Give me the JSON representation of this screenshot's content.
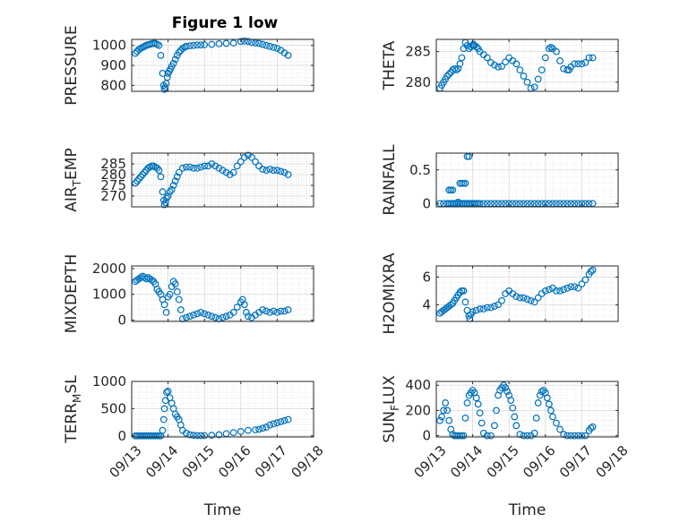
{
  "figure": {
    "title": "Figure 1 low",
    "marker_color": "#0072BD",
    "axis_color": "#262626",
    "grid_color": "#d9d9d9"
  },
  "chart_data": [
    {
      "type": "scatter",
      "ylabel_parts": [
        "PRESSURE"
      ],
      "xlim": [
        0,
        5
      ],
      "ylim": [
        770,
        1030
      ],
      "yticks": [
        800,
        900,
        1000
      ],
      "ytick_labels": [
        "800",
        "900",
        "1000"
      ],
      "xticks": [
        0,
        1,
        2,
        3,
        4,
        5
      ],
      "xtick_labels": [],
      "grid": true,
      "minor_grid": true,
      "x": [
        0.1,
        0.15,
        0.2,
        0.25,
        0.3,
        0.35,
        0.4,
        0.45,
        0.5,
        0.55,
        0.6,
        0.65,
        0.7,
        0.75,
        0.8,
        0.85,
        0.88,
        0.9,
        0.92,
        0.95,
        0.98,
        1.0,
        1.03,
        1.06,
        1.1,
        1.15,
        1.2,
        1.25,
        1.3,
        1.35,
        1.4,
        1.45,
        1.5,
        1.6,
        1.7,
        1.8,
        1.9,
        2.0,
        2.2,
        2.4,
        2.6,
        2.8,
        3.0,
        3.1,
        3.2,
        3.3,
        3.4,
        3.5,
        3.6,
        3.7,
        3.8,
        3.9,
        4.0,
        4.1,
        4.2,
        4.3
      ],
      "y": [
        960,
        970,
        980,
        985,
        990,
        995,
        1000,
        1003,
        1005,
        1008,
        1010,
        1010,
        1005,
        1000,
        950,
        860,
        800,
        780,
        790,
        810,
        840,
        860,
        870,
        880,
        895,
        910,
        930,
        950,
        965,
        975,
        985,
        990,
        995,
        998,
        1000,
        1002,
        1002,
        1003,
        1005,
        1008,
        1010,
        1012,
        1020,
        1022,
        1020,
        1015,
        1012,
        1010,
        1005,
        1000,
        995,
        990,
        985,
        975,
        962,
        950
      ]
    },
    {
      "type": "scatter",
      "ylabel_parts": [
        "THETA"
      ],
      "xlim": [
        0,
        5
      ],
      "ylim": [
        278.5,
        287
      ],
      "yticks": [
        280,
        285
      ],
      "ytick_labels": [
        "280",
        "285"
      ],
      "xticks": [
        0,
        1,
        2,
        3,
        4,
        5
      ],
      "xtick_labels": [],
      "grid": true,
      "minor_grid": true,
      "x": [
        0.1,
        0.15,
        0.2,
        0.25,
        0.3,
        0.35,
        0.4,
        0.45,
        0.5,
        0.55,
        0.6,
        0.65,
        0.7,
        0.75,
        0.8,
        0.85,
        0.9,
        0.95,
        1.0,
        1.02,
        1.05,
        1.1,
        1.15,
        1.2,
        1.3,
        1.4,
        1.5,
        1.6,
        1.7,
        1.8,
        1.9,
        2.0,
        2.1,
        2.2,
        2.3,
        2.4,
        2.5,
        2.6,
        2.7,
        2.8,
        2.9,
        3.0,
        3.1,
        3.15,
        3.2,
        3.3,
        3.4,
        3.5,
        3.6,
        3.65,
        3.7,
        3.8,
        3.9,
        4.0,
        4.1,
        4.2,
        4.3
      ],
      "y": [
        279,
        279.5,
        280,
        280.5,
        281,
        281.3,
        281.6,
        282,
        282.2,
        282,
        282.2,
        283,
        284,
        285.5,
        286.5,
        286,
        285.5,
        285.8,
        286,
        286.2,
        286,
        285.8,
        285.5,
        285,
        284.5,
        284,
        283.2,
        282.8,
        282.5,
        282.6,
        283.3,
        284,
        283.5,
        283,
        282,
        281,
        280,
        279,
        279.2,
        280.5,
        282,
        284,
        285.5,
        285.7,
        285.5,
        285,
        283.5,
        282.2,
        282,
        282,
        282.5,
        283,
        283,
        283,
        283.2,
        284,
        284
      ]
    },
    {
      "type": "scatter",
      "ylabel_parts": [
        "AIR",
        "T",
        "EMP"
      ],
      "xlim": [
        0,
        5
      ],
      "ylim": [
        265,
        290
      ],
      "yticks": [
        270,
        275,
        280,
        285
      ],
      "ytick_labels": [
        "270",
        "275",
        "280",
        "285"
      ],
      "xticks": [
        0,
        1,
        2,
        3,
        4,
        5
      ],
      "xtick_labels": [],
      "grid": true,
      "minor_grid": true,
      "x": [
        0.1,
        0.15,
        0.2,
        0.25,
        0.3,
        0.35,
        0.4,
        0.45,
        0.5,
        0.55,
        0.6,
        0.65,
        0.7,
        0.75,
        0.8,
        0.85,
        0.88,
        0.9,
        0.93,
        0.96,
        1.0,
        1.05,
        1.1,
        1.15,
        1.2,
        1.25,
        1.3,
        1.4,
        1.5,
        1.6,
        1.7,
        1.8,
        1.9,
        2.0,
        2.1,
        2.2,
        2.3,
        2.4,
        2.5,
        2.6,
        2.7,
        2.8,
        2.9,
        3.0,
        3.1,
        3.2,
        3.3,
        3.4,
        3.5,
        3.6,
        3.7,
        3.8,
        3.9,
        4.0,
        4.1,
        4.2,
        4.3
      ],
      "y": [
        276,
        277,
        278,
        279,
        280,
        281,
        282,
        283,
        283.5,
        284,
        284,
        283.5,
        283,
        282,
        279,
        272,
        268,
        266,
        267,
        269,
        270,
        272,
        273,
        275,
        277,
        279,
        281,
        283,
        283.5,
        283.5,
        283,
        283,
        283.5,
        284,
        284,
        285,
        284,
        283,
        282,
        281,
        280,
        281,
        284,
        286,
        288,
        289,
        288,
        286,
        284,
        282.5,
        282,
        282.5,
        282,
        282,
        281.5,
        281,
        280
      ]
    },
    {
      "type": "scatter",
      "ylabel_parts": [
        "RAINFALL"
      ],
      "xlim": [
        0,
        5
      ],
      "ylim": [
        -0.05,
        0.75
      ],
      "yticks": [
        0,
        0.5
      ],
      "ytick_labels": [
        "0",
        "0.5"
      ],
      "xticks": [
        0,
        1,
        2,
        3,
        4,
        5
      ],
      "xtick_labels": [],
      "grid": true,
      "minor_grid": true,
      "x": [
        0.1,
        0.2,
        0.3,
        0.35,
        0.4,
        0.45,
        0.5,
        0.55,
        0.6,
        0.65,
        0.7,
        0.75,
        0.8,
        0.85,
        0.9,
        0.95,
        1.0,
        1.05,
        1.1,
        1.15,
        1.2,
        1.3,
        1.4,
        1.5,
        1.6,
        1.7,
        1.8,
        1.9,
        2.0,
        2.1,
        2.2,
        2.3,
        2.4,
        2.5,
        2.6,
        2.7,
        2.8,
        2.9,
        3.0,
        3.1,
        3.2,
        3.3,
        3.4,
        3.5,
        3.6,
        3.7,
        3.8,
        3.9,
        4.0,
        4.1,
        4.2,
        4.3,
        0.35,
        0.4,
        0.45,
        0.6,
        0.75,
        0.8,
        0.85,
        0.65,
        0.7,
        0.9,
        1.0
      ],
      "y": [
        0,
        0,
        0,
        0,
        0,
        0,
        0,
        0,
        0,
        0,
        0,
        0,
        0,
        0,
        0,
        0,
        0,
        0,
        0,
        0,
        0,
        0,
        0,
        0,
        0,
        0,
        0,
        0,
        0,
        0,
        0,
        0,
        0,
        0,
        0,
        0,
        0,
        0,
        0,
        0,
        0,
        0,
        0,
        0,
        0,
        0,
        0,
        0,
        0,
        0,
        0,
        0,
        0.2,
        0.2,
        0.2,
        0.02,
        0.3,
        0.3,
        0.7,
        0.3,
        0.3,
        0.7,
        0
      ]
    },
    {
      "type": "scatter",
      "ylabel_parts": [
        "MIXDEPTH"
      ],
      "xlim": [
        0,
        5
      ],
      "ylim": [
        -50,
        2100
      ],
      "yticks": [
        0,
        1000,
        2000
      ],
      "ytick_labels": [
        "0",
        "1000",
        "2000"
      ],
      "xticks": [
        0,
        1,
        2,
        3,
        4,
        5
      ],
      "xtick_labels": [],
      "grid": true,
      "minor_grid": true,
      "x": [
        0.1,
        0.15,
        0.2,
        0.25,
        0.3,
        0.35,
        0.4,
        0.45,
        0.5,
        0.55,
        0.6,
        0.65,
        0.7,
        0.75,
        0.8,
        0.85,
        0.9,
        0.95,
        1.0,
        1.05,
        1.1,
        1.15,
        1.2,
        1.25,
        1.3,
        1.35,
        1.4,
        1.5,
        1.6,
        1.7,
        1.8,
        1.9,
        2.0,
        2.1,
        2.2,
        2.3,
        2.4,
        2.5,
        2.6,
        2.7,
        2.8,
        2.9,
        3.0,
        3.05,
        3.1,
        3.15,
        3.2,
        3.3,
        3.4,
        3.5,
        3.6,
        3.7,
        3.8,
        3.9,
        4.0,
        4.1,
        4.2,
        4.3
      ],
      "y": [
        1500,
        1550,
        1600,
        1650,
        1700,
        1650,
        1600,
        1650,
        1600,
        1550,
        1500,
        1400,
        1200,
        1100,
        1000,
        800,
        600,
        300,
        900,
        1000,
        1300,
        1500,
        1400,
        1100,
        800,
        400,
        50,
        100,
        150,
        200,
        250,
        300,
        250,
        200,
        150,
        100,
        50,
        100,
        150,
        200,
        300,
        500,
        700,
        800,
        600,
        300,
        150,
        100,
        200,
        300,
        400,
        350,
        300,
        350,
        300,
        350,
        350,
        400
      ]
    },
    {
      "type": "scatter",
      "ylabel_parts": [
        "H2OMIXRA"
      ],
      "xlim": [
        0,
        5
      ],
      "ylim": [
        2.8,
        6.8
      ],
      "yticks": [
        4,
        6
      ],
      "ytick_labels": [
        "4",
        "6"
      ],
      "xticks": [
        0,
        1,
        2,
        3,
        4,
        5
      ],
      "xtick_labels": [],
      "grid": true,
      "minor_grid": true,
      "x": [
        0.1,
        0.15,
        0.2,
        0.25,
        0.3,
        0.35,
        0.4,
        0.45,
        0.5,
        0.55,
        0.6,
        0.65,
        0.7,
        0.75,
        0.8,
        0.85,
        0.9,
        0.92,
        0.95,
        1.0,
        1.1,
        1.2,
        1.3,
        1.4,
        1.5,
        1.6,
        1.7,
        1.8,
        1.9,
        2.0,
        2.1,
        2.2,
        2.3,
        2.4,
        2.5,
        2.6,
        2.7,
        2.8,
        2.9,
        3.0,
        3.1,
        3.2,
        3.3,
        3.4,
        3.5,
        3.6,
        3.7,
        3.8,
        3.9,
        4.0,
        4.1,
        4.2,
        4.25,
        4.3
      ],
      "y": [
        3.4,
        3.5,
        3.6,
        3.7,
        3.8,
        3.9,
        4.0,
        4.1,
        4.3,
        4.5,
        4.7,
        4.9,
        5.0,
        5.0,
        4.2,
        3.6,
        3.2,
        3.0,
        3.3,
        3.5,
        3.6,
        3.7,
        3.7,
        3.8,
        3.8,
        3.9,
        4.0,
        4.3,
        4.8,
        5.0,
        4.8,
        4.6,
        4.5,
        4.5,
        4.4,
        4.3,
        4.2,
        4.5,
        4.8,
        5.0,
        5.1,
        5.2,
        5.0,
        5.0,
        5.1,
        5.2,
        5.3,
        5.3,
        5.2,
        5.5,
        5.8,
        6.2,
        6.4,
        6.5
      ]
    },
    {
      "type": "scatter",
      "ylabel_parts": [
        "TERR",
        "M",
        "SL"
      ],
      "xlim": [
        0,
        5
      ],
      "ylim": [
        -20,
        1000
      ],
      "yticks": [
        0,
        500,
        1000
      ],
      "ytick_labels": [
        "0",
        "500",
        "1000"
      ],
      "xticks": [
        0,
        1,
        2,
        3,
        4,
        5
      ],
      "xtick_labels": [
        "09/13",
        "09/14",
        "09/15",
        "09/16",
        "09/17",
        "09/18"
      ],
      "xlabel": "Time",
      "grid": true,
      "minor_grid": true,
      "x": [
        0.1,
        0.15,
        0.2,
        0.25,
        0.3,
        0.35,
        0.4,
        0.45,
        0.5,
        0.55,
        0.6,
        0.65,
        0.7,
        0.75,
        0.8,
        0.85,
        0.88,
        0.9,
        0.93,
        0.96,
        1.0,
        1.05,
        1.1,
        1.15,
        1.2,
        1.25,
        1.3,
        1.35,
        1.4,
        1.5,
        1.6,
        1.7,
        1.8,
        1.9,
        2.0,
        2.2,
        2.4,
        2.6,
        2.8,
        3.0,
        3.2,
        3.4,
        3.5,
        3.6,
        3.7,
        3.8,
        3.9,
        4.0,
        4.1,
        4.2,
        4.3
      ],
      "y": [
        0,
        0,
        0,
        0,
        0,
        0,
        0,
        0,
        0,
        0,
        0,
        0,
        0,
        0,
        0,
        100,
        300,
        500,
        650,
        800,
        820,
        700,
        600,
        500,
        400,
        350,
        300,
        200,
        100,
        50,
        20,
        10,
        5,
        5,
        5,
        10,
        20,
        40,
        60,
        80,
        100,
        110,
        120,
        140,
        160,
        200,
        220,
        240,
        260,
        280,
        300
      ]
    },
    {
      "type": "scatter",
      "ylabel_parts": [
        "SUN",
        "F",
        "LUX"
      ],
      "xlim": [
        0,
        5
      ],
      "ylim": [
        -10,
        430
      ],
      "yticks": [
        0,
        200,
        400
      ],
      "ytick_labels": [
        "0",
        "200",
        "400"
      ],
      "xticks": [
        0,
        1,
        2,
        3,
        4,
        5
      ],
      "xtick_labels": [
        "09/13",
        "09/14",
        "09/15",
        "09/16",
        "09/17",
        "09/18"
      ],
      "xlabel": "Time",
      "grid": true,
      "minor_grid": true,
      "x": [
        0.1,
        0.15,
        0.2,
        0.25,
        0.3,
        0.35,
        0.4,
        0.45,
        0.5,
        0.55,
        0.6,
        0.65,
        0.7,
        0.75,
        0.8,
        0.85,
        0.9,
        0.95,
        1.0,
        1.05,
        1.1,
        1.15,
        1.2,
        1.25,
        1.3,
        1.4,
        1.5,
        1.6,
        1.65,
        1.7,
        1.75,
        1.8,
        1.85,
        1.9,
        1.95,
        2.0,
        2.05,
        2.1,
        2.15,
        2.2,
        2.3,
        2.4,
        2.5,
        2.6,
        2.7,
        2.75,
        2.8,
        2.85,
        2.9,
        2.95,
        3.0,
        3.05,
        3.1,
        3.15,
        3.2,
        3.3,
        3.4,
        3.5,
        3.6,
        3.7,
        3.8,
        3.9,
        4.0,
        4.1,
        4.2,
        4.25,
        4.3
      ],
      "y": [
        120,
        150,
        200,
        260,
        200,
        120,
        50,
        10,
        0,
        0,
        0,
        0,
        0,
        0,
        140,
        260,
        320,
        340,
        360,
        340,
        300,
        250,
        180,
        100,
        20,
        0,
        0,
        80,
        200,
        320,
        360,
        380,
        400,
        380,
        350,
        320,
        280,
        220,
        150,
        80,
        10,
        0,
        0,
        0,
        20,
        140,
        260,
        320,
        350,
        360,
        340,
        300,
        250,
        200,
        150,
        100,
        50,
        10,
        0,
        0,
        0,
        0,
        0,
        0,
        40,
        60,
        70
      ]
    }
  ]
}
